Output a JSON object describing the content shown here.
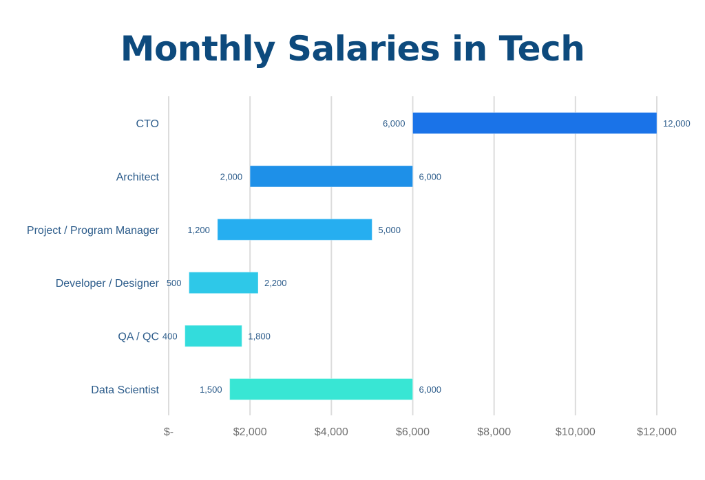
{
  "chart_data": {
    "type": "bar",
    "orientation": "horizontal",
    "subtype": "floating-range",
    "title": "Monthly Salaries in Tech",
    "xlabel": "",
    "ylabel": "",
    "xlim": [
      0,
      12000
    ],
    "grid": true,
    "categories": [
      "CTO",
      "Architect",
      "Project / Program Manager",
      "Developer / Designer",
      "QA / QC",
      "Data Scientist"
    ],
    "series": [
      {
        "name": "min",
        "values": [
          6000,
          2000,
          1200,
          500,
          400,
          1500
        ]
      },
      {
        "name": "max",
        "values": [
          12000,
          6000,
          5000,
          2200,
          1800,
          6000
        ]
      }
    ],
    "min_labels": [
      "6,000",
      "2,000",
      "1,200",
      "500",
      "400",
      "1,500"
    ],
    "max_labels": [
      "12,000",
      "6,000",
      "5,000",
      "2,200",
      "1,800",
      "6,000"
    ],
    "bar_colors": [
      "#1a73e8",
      "#1e90e8",
      "#26aef0",
      "#2ec8e8",
      "#33dcdc",
      "#38e6d4"
    ],
    "x_ticks": [
      0,
      2000,
      4000,
      6000,
      8000,
      10000,
      12000
    ],
    "x_tick_labels": [
      "$-",
      "$2,000",
      "$4,000",
      "$6,000",
      "$8,000",
      "$10,000",
      "$12,000"
    ],
    "legend": "none"
  },
  "colors": {
    "title": "#0d4a7d",
    "label": "#2b5b8a",
    "tick": "#707070",
    "grid": "#dcdcdc"
  }
}
